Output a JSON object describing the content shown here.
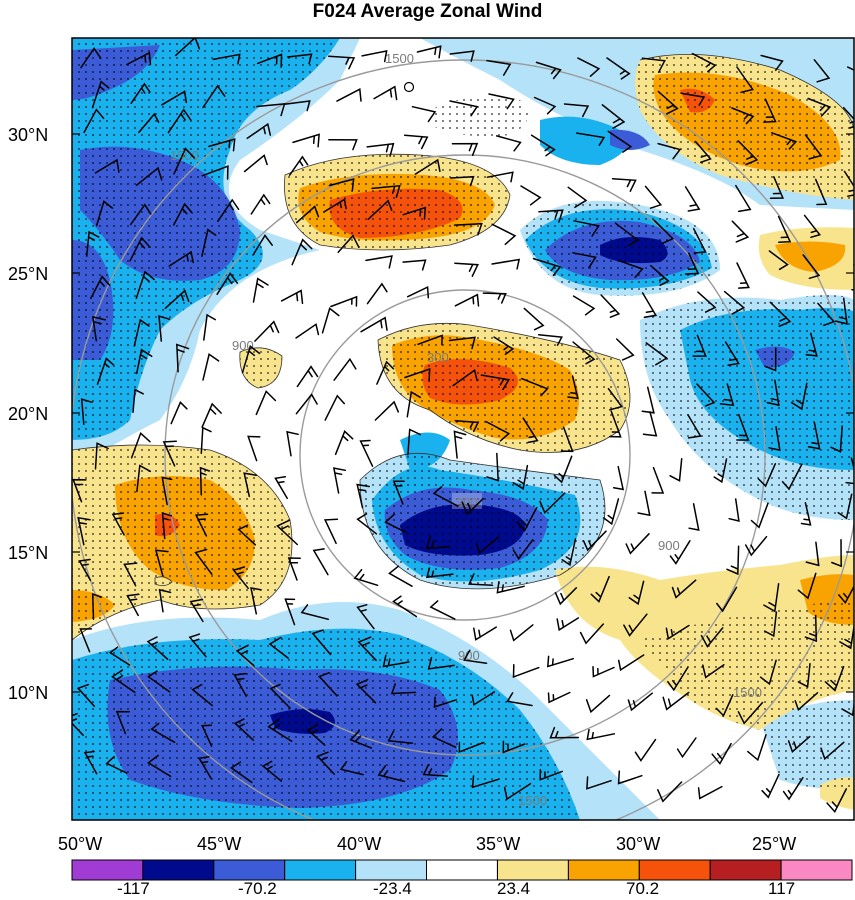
{
  "title": "F024 Average Zonal Wind",
  "map": {
    "lat_ticks": [
      "30°N",
      "25°N",
      "20°N",
      "15°N",
      "10°N"
    ],
    "lon_ticks": [
      "50°W",
      "45°W",
      "40°W",
      "35°W",
      "30°W",
      "25°W"
    ],
    "range_ring_labels": [
      "300",
      "900",
      "1500"
    ],
    "stipple": "dots",
    "barb_color": "#000000"
  },
  "colorbar": {
    "labels": [
      "-117",
      "-70.2",
      "-23.4",
      "23.4",
      "70.2",
      "117"
    ],
    "colors": [
      "#a03bd4",
      "#000a8c",
      "#3b5cd6",
      "#1ab2ee",
      "#b4e2f8",
      "#ffffff",
      "#f9e48e",
      "#f9a300",
      "#f5530c",
      "#b51f22",
      "#fa89c3"
    ]
  },
  "palette": {
    "darkblue": "#000a8c",
    "blue": "#3b5cd6",
    "cyan": "#1ab2ee",
    "lightblue": "#b4e2f8",
    "yellow": "#f9e48e",
    "orange": "#f9a300",
    "red": "#f5530c",
    "ring": "#9a9a9a"
  }
}
